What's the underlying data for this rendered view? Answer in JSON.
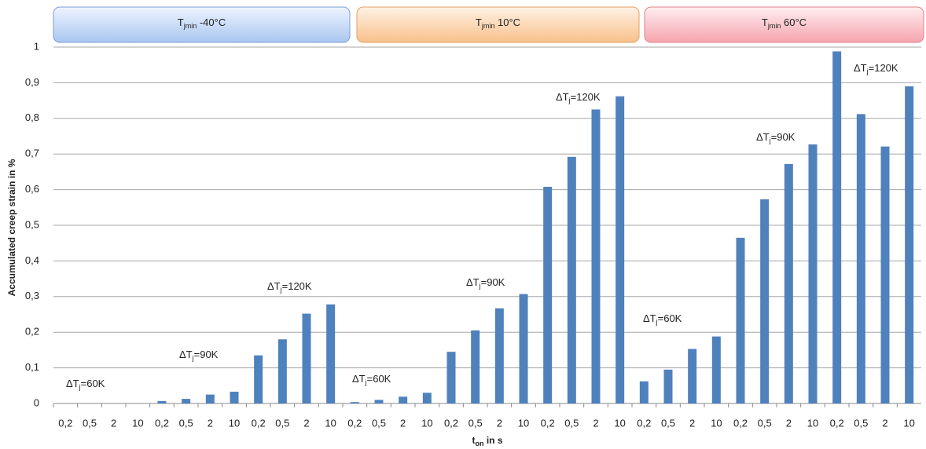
{
  "chart_data": {
    "type": "bar",
    "y_label": "Accumulated creep strain in %",
    "x_label": {
      "prefix": "t",
      "sub": "on",
      "suffix": " in s"
    },
    "panels": [
      {
        "prefix": "T",
        "sub": "jmin",
        "suffix": "  -40°C"
      },
      {
        "prefix": "T",
        "sub": "jmin",
        "suffix": "  10°C"
      },
      {
        "prefix": "T",
        "sub": "jmin",
        "suffix": "  60°C"
      }
    ],
    "annotations": [
      {
        "prefix": "ΔT",
        "sub": "j",
        "suffix": "=60K"
      },
      {
        "prefix": "ΔT",
        "sub": "j",
        "suffix": "=90K"
      },
      {
        "prefix": "ΔT",
        "sub": "j",
        "suffix": "=120K"
      },
      {
        "prefix": "ΔT",
        "sub": "j",
        "suffix": "=60K"
      },
      {
        "prefix": "ΔT",
        "sub": "j",
        "suffix": "=90K"
      },
      {
        "prefix": "ΔT",
        "sub": "j",
        "suffix": "=120K"
      },
      {
        "prefix": "ΔT",
        "sub": "j",
        "suffix": "=60K"
      },
      {
        "prefix": "ΔT",
        "sub": "j",
        "suffix": "=90K"
      },
      {
        "prefix": "ΔT",
        "sub": "j",
        "suffix": "=120K"
      }
    ],
    "categories": [
      "0,2",
      "0,5",
      "2",
      "10",
      "0,2",
      "0,5",
      "2",
      "10",
      "0,2",
      "0,5",
      "2",
      "10",
      "0,2",
      "0,5",
      "2",
      "10",
      "0,2",
      "0,5",
      "2",
      "10",
      "0,2",
      "0,5",
      "2",
      "10",
      "0,2",
      "0,5",
      "2",
      "10",
      "0,2",
      "0,5",
      "2",
      "10",
      "0,2",
      "0,5",
      "2",
      "10"
    ],
    "values": [
      0,
      0,
      0,
      0,
      0.007,
      0.013,
      0.025,
      0.033,
      0.135,
      0.18,
      0.252,
      0.278,
      0.004,
      0.01,
      0.019,
      0.03,
      0.145,
      0.205,
      0.267,
      0.307,
      0.608,
      0.692,
      0.825,
      0.862,
      0.062,
      0.095,
      0.153,
      0.188,
      0.465,
      0.573,
      0.672,
      0.727,
      0.988,
      0.812,
      0.721,
      0.89
    ],
    "color": "#4f81bd",
    "ylim": [
      0,
      1
    ],
    "yticks": [
      0,
      {
        "value": 0.1,
        "label": "0,1"
      },
      {
        "value": 0.2,
        "label": "0,2"
      },
      {
        "value": 0.3,
        "label": "0,3"
      },
      {
        "value": 0.4,
        "label": "0,4"
      },
      {
        "value": 0.5,
        "label": "0,5"
      },
      {
        "value": 0.6,
        "label": "0,6"
      },
      {
        "value": 0.7,
        "label": "0,7"
      },
      {
        "value": 0.8,
        "label": "0,8"
      },
      {
        "value": 0.9,
        "label": "0,9"
      },
      1
    ],
    "grid": true
  }
}
